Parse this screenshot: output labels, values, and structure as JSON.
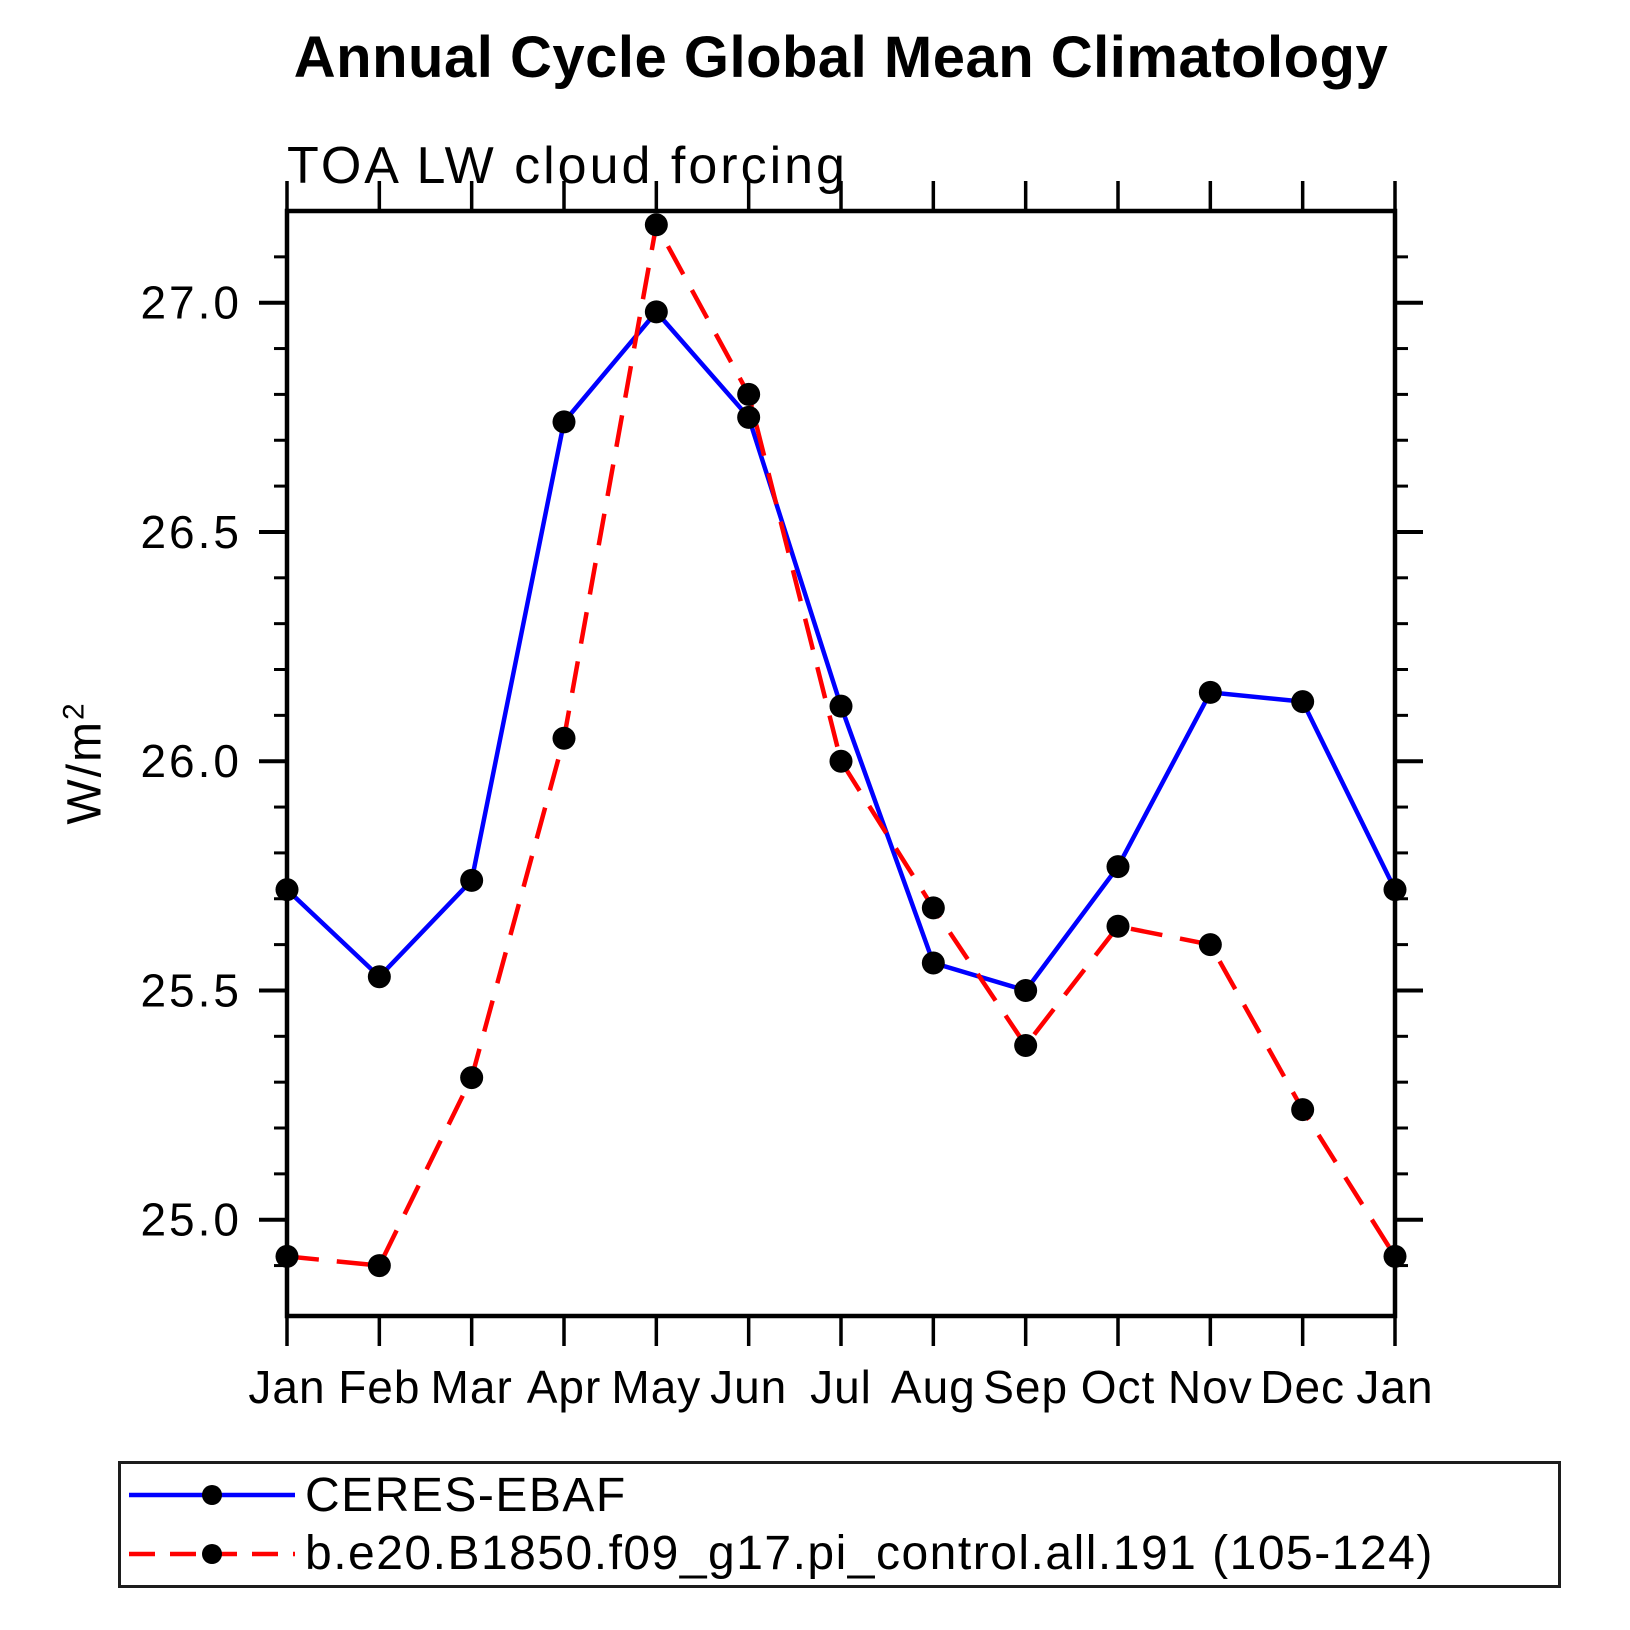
{
  "title": "Annual Cycle Global Mean Climatology",
  "subtitle": "TOA LW cloud forcing",
  "ylabel": {
    "text": "W/m",
    "sup": "2"
  },
  "chart_data": {
    "type": "line",
    "categories": [
      "Jan",
      "Feb",
      "Mar",
      "Apr",
      "May",
      "Jun",
      "Jul",
      "Aug",
      "Sep",
      "Oct",
      "Nov",
      "Dec",
      "Jan"
    ],
    "xlabel": "",
    "ylabel": "W/m2",
    "ylim": [
      24.79,
      27.2
    ],
    "y_ticks": [
      25.0,
      25.5,
      26.0,
      26.5,
      27.0
    ],
    "y_tick_labels": [
      "25.0",
      "25.5",
      "26.0",
      "26.5",
      "27.0"
    ],
    "y_minor_step": 0.1,
    "y_minor_range": [
      24.9,
      27.1
    ],
    "grid": false,
    "legend_position": "bottom",
    "marker_color": "#000000",
    "frame_color": "#000000",
    "series": [
      {
        "name": "CERES-EBAF",
        "color": "#0000ff",
        "style": "solid",
        "values": [
          25.72,
          25.53,
          25.74,
          26.74,
          26.98,
          26.75,
          26.12,
          25.56,
          25.5,
          25.77,
          26.15,
          26.13,
          25.72
        ]
      },
      {
        "name": "b.e20.B1850.f09_g17.pi_control.all.191 (105-124)",
        "color": "#ff0000",
        "style": "dashed",
        "values": [
          24.92,
          24.9,
          25.31,
          26.05,
          27.17,
          26.8,
          26.0,
          25.68,
          25.38,
          25.64,
          25.6,
          25.24,
          24.92
        ]
      }
    ]
  }
}
